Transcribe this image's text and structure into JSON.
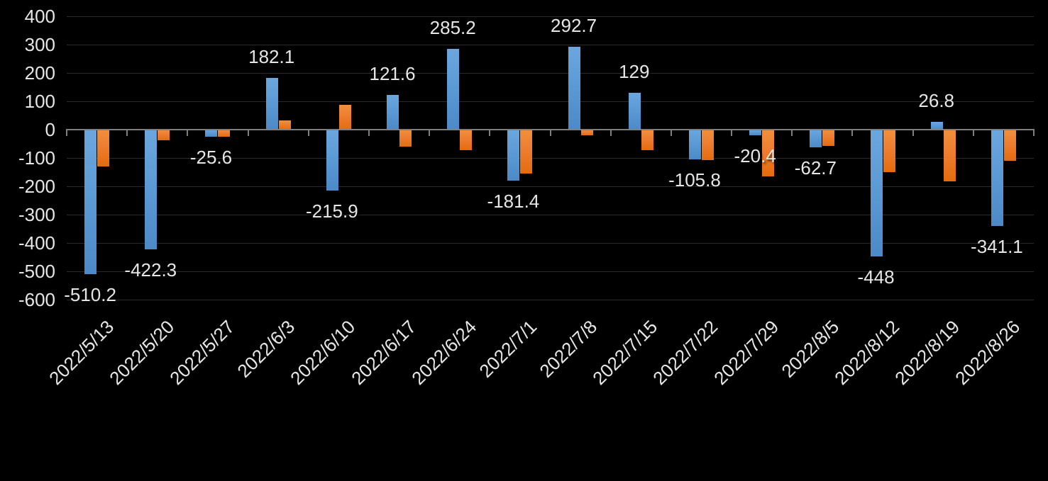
{
  "chart_data": {
    "type": "bar",
    "title": "",
    "xlabel": "",
    "ylabel": "",
    "categories": [
      "2022/5/13",
      "2022/5/20",
      "2022/5/27",
      "2022/6/3",
      "2022/6/10",
      "2022/6/17",
      "2022/6/24",
      "2022/7/1",
      "2022/7/8",
      "2022/7/15",
      "2022/7/22",
      "2022/7/29",
      "2022/8/5",
      "2022/8/12",
      "2022/8/19",
      "2022/8/26"
    ],
    "series": [
      {
        "name": "blue-series",
        "color": "#5B9BD5",
        "values": [
          -510.2,
          -422.3,
          -25.6,
          182.1,
          -215.9,
          121.6,
          285.2,
          -181.4,
          292.7,
          129,
          -105.8,
          -20.4,
          -62.7,
          -448,
          26.8,
          -341.1
        ],
        "data_labels": [
          "-510.2",
          "-422.3",
          "-25.6",
          "182.1",
          "-215.9",
          "121.6",
          "285.2",
          "-181.4",
          "292.7",
          "129",
          "-105.8",
          "-20.4",
          "-62.7",
          "-448",
          "26.8",
          "-341.1"
        ]
      },
      {
        "name": "orange-series",
        "color": "#ED7D31",
        "values": [
          -130,
          -38,
          -26,
          33,
          88,
          -60,
          -73,
          -155,
          -22,
          -73,
          -108,
          -166,
          -58,
          -150,
          -183,
          -110
        ],
        "data_labels": null,
        "values_estimated_from_gridlines": true
      }
    ],
    "ylim": [
      -600,
      400
    ],
    "yticks": [
      400,
      300,
      200,
      100,
      0,
      -100,
      -200,
      -300,
      -400,
      -500,
      -600
    ],
    "ytick_labels": [
      "400",
      "300",
      "200",
      "100",
      "0",
      "-100",
      "-200",
      "-300",
      "-400",
      "-500",
      "-600"
    ],
    "grid": true,
    "legend_position": "none",
    "x_tick_label_rotation_deg": 45,
    "colors": {
      "background": "#000000",
      "text": "#E6E6E6",
      "gridline": "#2B2B2B",
      "axis_line": "#7F7F7F",
      "bar_blue": "#5B9BD5",
      "bar_orange": "#ED7D31"
    }
  }
}
